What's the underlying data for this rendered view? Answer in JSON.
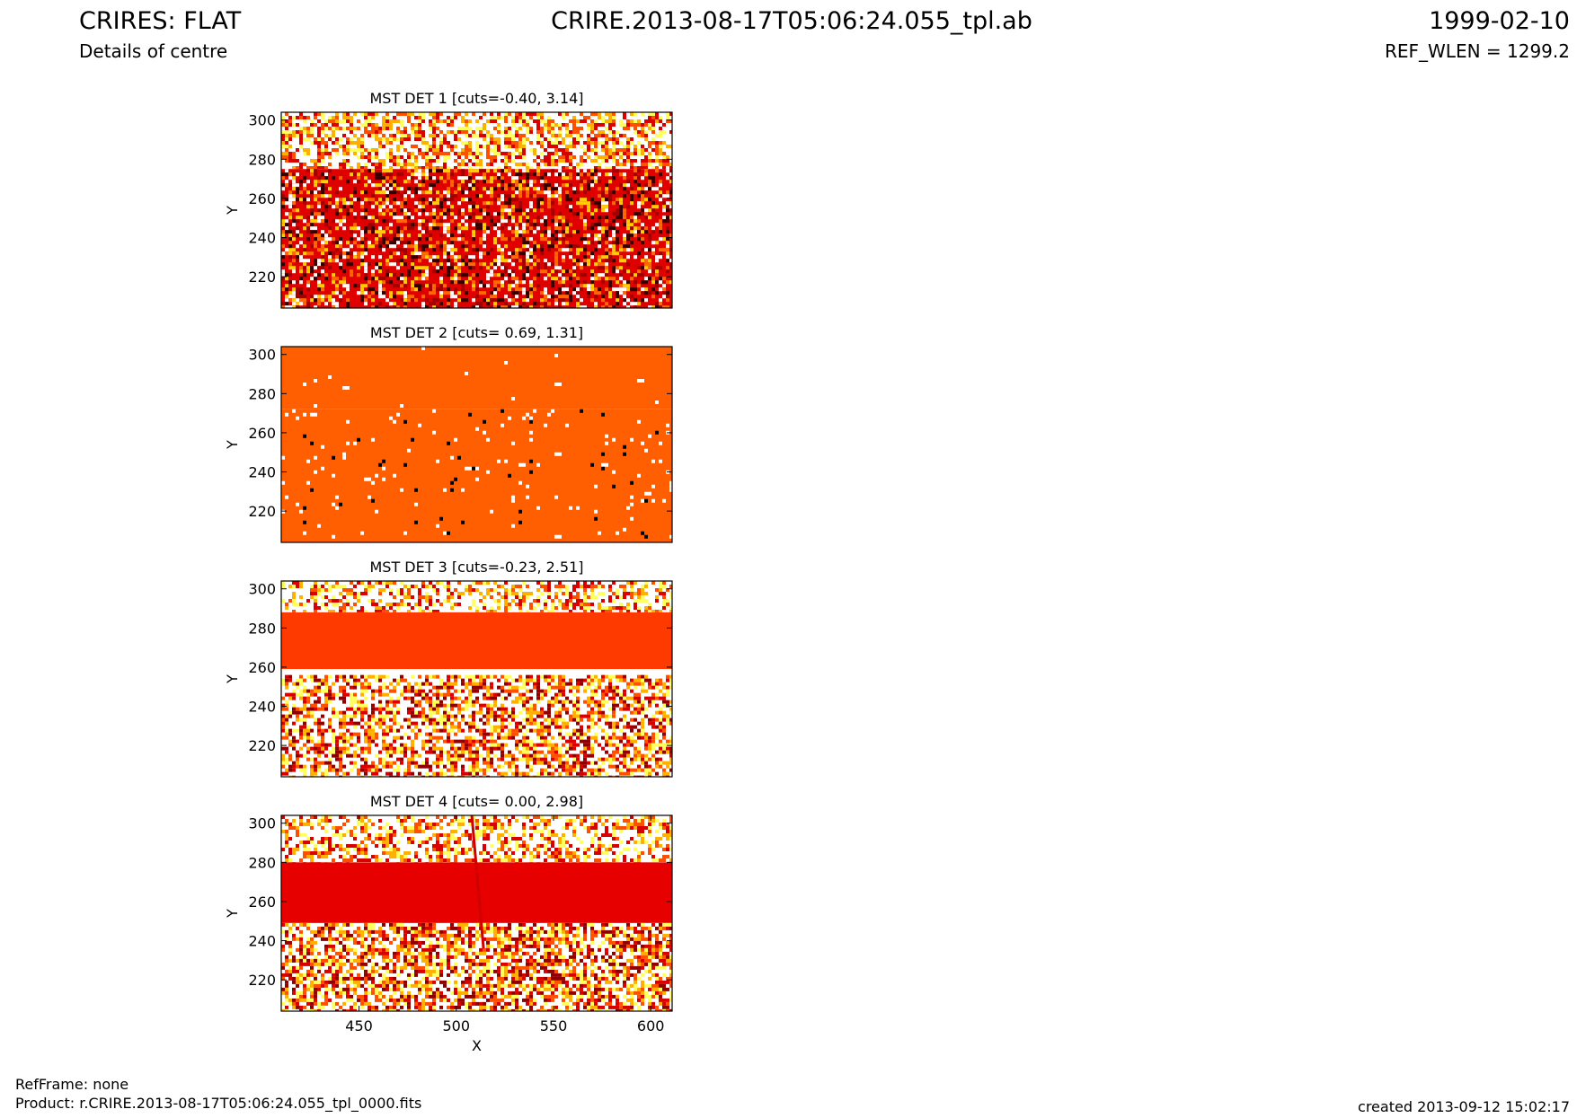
{
  "header": {
    "title": "CRIRES: FLAT",
    "subtitle": "Details of centre",
    "file": "CRIRE.2013-08-17T05:06:24.055_tpl.ab",
    "date": "1999-02-10",
    "ref_wlen": "REF_WLEN = 1299.2"
  },
  "footer": {
    "refframe": "RefFrame: none",
    "product": "Product: r.CRIRE.2013-08-17T05:06:24.055_tpl_0000.fits",
    "created": "created 2013-09-12 15:02:17"
  },
  "chart_data": [
    {
      "type": "image",
      "title": "MST DET 1 [cuts=-0.40, 3.14]",
      "ylabel": "Y",
      "xlim": [
        410,
        611
      ],
      "ylim": [
        204,
        304
      ],
      "yticks": [
        220,
        240,
        260,
        280,
        300
      ],
      "regions": [
        {
          "ylim": [
            275,
            304
          ],
          "colors": [
            "#ffffff",
            "#ffff60",
            "#ffb000",
            "#ff5000",
            "#d80000"
          ],
          "density": 0.6
        },
        {
          "ylim": [
            204,
            275
          ],
          "colors": [
            "#e00000",
            "#ff6a00",
            "#ffffff",
            "#ffd000",
            "#a00000",
            "#300000"
          ],
          "density": 0.5
        }
      ]
    },
    {
      "type": "image",
      "title": "MST DET 2 [cuts= 0.69, 1.31]",
      "ylabel": "Y",
      "xlim": [
        410,
        611
      ],
      "ylim": [
        204,
        304
      ],
      "yticks": [
        220,
        240,
        260,
        280,
        300
      ],
      "regions": [
        {
          "ylim": [
            272,
            304
          ],
          "colors": [
            "#ff5f00",
            "#ffffff"
          ],
          "density": 0.005
        },
        {
          "ylim": [
            204,
            272
          ],
          "colors": [
            "#ff5f00",
            "#ffffff",
            "#ffffff",
            "#ffffff",
            "#000000"
          ],
          "density": 0.04
        }
      ]
    },
    {
      "type": "image",
      "title": "MST DET 3 [cuts=-0.23, 2.51]",
      "ylabel": "Y",
      "xlim": [
        410,
        611
      ],
      "ylim": [
        204,
        304
      ],
      "yticks": [
        220,
        240,
        260,
        280,
        300
      ],
      "regions": [
        {
          "ylim": [
            288,
            304
          ],
          "colors": [
            "#ffffff",
            "#ffff60",
            "#ffb000",
            "#ff5000",
            "#d80000"
          ],
          "density": 0.45
        },
        {
          "ylim": [
            259,
            288
          ],
          "colors": [
            "#ff3a00"
          ],
          "density": 0
        },
        {
          "ylim": [
            256,
            259
          ],
          "colors": [
            "#ffffff"
          ],
          "density": 0
        },
        {
          "ylim": [
            204,
            256
          ],
          "colors": [
            "#ffffff",
            "#ffff60",
            "#ffb000",
            "#ff5000",
            "#d80000",
            "#900000"
          ],
          "density": 0.6
        }
      ]
    },
    {
      "type": "image",
      "title": "MST DET 4 [cuts= 0.00, 2.98]",
      "ylabel": "Y",
      "xlabel": "X",
      "xlim": [
        410,
        611
      ],
      "ylim": [
        204,
        304
      ],
      "yticks": [
        220,
        240,
        260,
        280,
        300
      ],
      "xticks": [
        450,
        500,
        550,
        600
      ],
      "regions": [
        {
          "ylim": [
            280,
            304
          ],
          "colors": [
            "#ffffff",
            "#ffff60",
            "#ffb000",
            "#ff5000",
            "#d80000"
          ],
          "density": 0.5
        },
        {
          "ylim": [
            249,
            280
          ],
          "colors": [
            "#e60000"
          ],
          "density": 0
        },
        {
          "ylim": [
            204,
            249
          ],
          "colors": [
            "#ffffff",
            "#ffff60",
            "#ffb000",
            "#ff5000",
            "#d80000",
            "#900000"
          ],
          "density": 0.65
        }
      ],
      "trace": {
        "x": [
          508,
          514
        ],
        "y": [
          304,
          236
        ],
        "color": "#d00000"
      }
    }
  ]
}
